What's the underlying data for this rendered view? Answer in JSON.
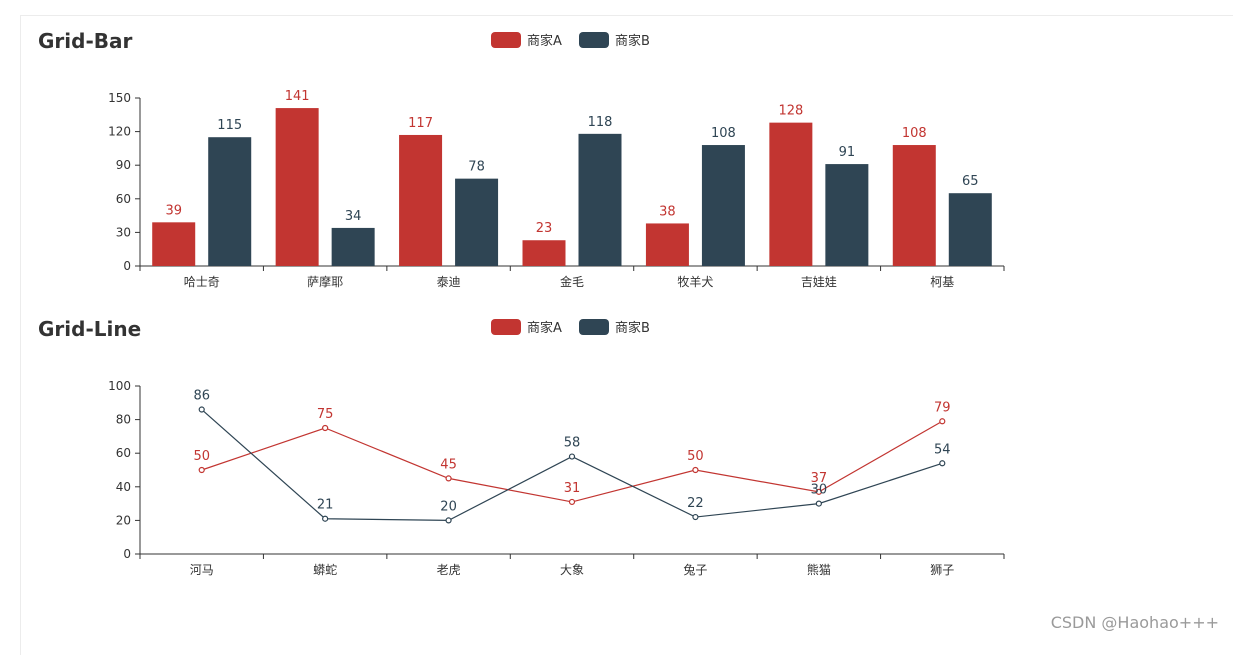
{
  "colors": {
    "seriesA": "#c23531",
    "seriesB": "#2f4554",
    "axis": "#333333",
    "frame": "#ececec"
  },
  "legend": {
    "a": "商家A",
    "b": "商家B"
  },
  "watermark": "CSDN @Haohao+++",
  "chart_data": [
    {
      "type": "bar",
      "title": "Grid-Bar",
      "categories": [
        "哈士奇",
        "萨摩耶",
        "泰迪",
        "金毛",
        "牧羊犬",
        "吉娃娃",
        "柯基"
      ],
      "series": [
        {
          "name": "商家A",
          "values": [
            39,
            141,
            117,
            23,
            38,
            128,
            108
          ]
        },
        {
          "name": "商家B",
          "values": [
            115,
            34,
            78,
            118,
            108,
            91,
            65
          ]
        }
      ],
      "ylim": [
        0,
        150
      ],
      "yticks": [
        0,
        30,
        60,
        90,
        120,
        150
      ],
      "legend_position": "top-center"
    },
    {
      "type": "line",
      "title": "Grid-Line",
      "categories": [
        "河马",
        "蟒蛇",
        "老虎",
        "大象",
        "兔子",
        "熊猫",
        "狮子"
      ],
      "series": [
        {
          "name": "商家A",
          "values": [
            50,
            75,
            45,
            31,
            50,
            37,
            79
          ]
        },
        {
          "name": "商家B",
          "values": [
            86,
            21,
            20,
            58,
            22,
            30,
            54
          ]
        }
      ],
      "ylim": [
        0,
        100
      ],
      "yticks": [
        0,
        20,
        40,
        60,
        80,
        100
      ],
      "legend_position": "top-center"
    }
  ]
}
